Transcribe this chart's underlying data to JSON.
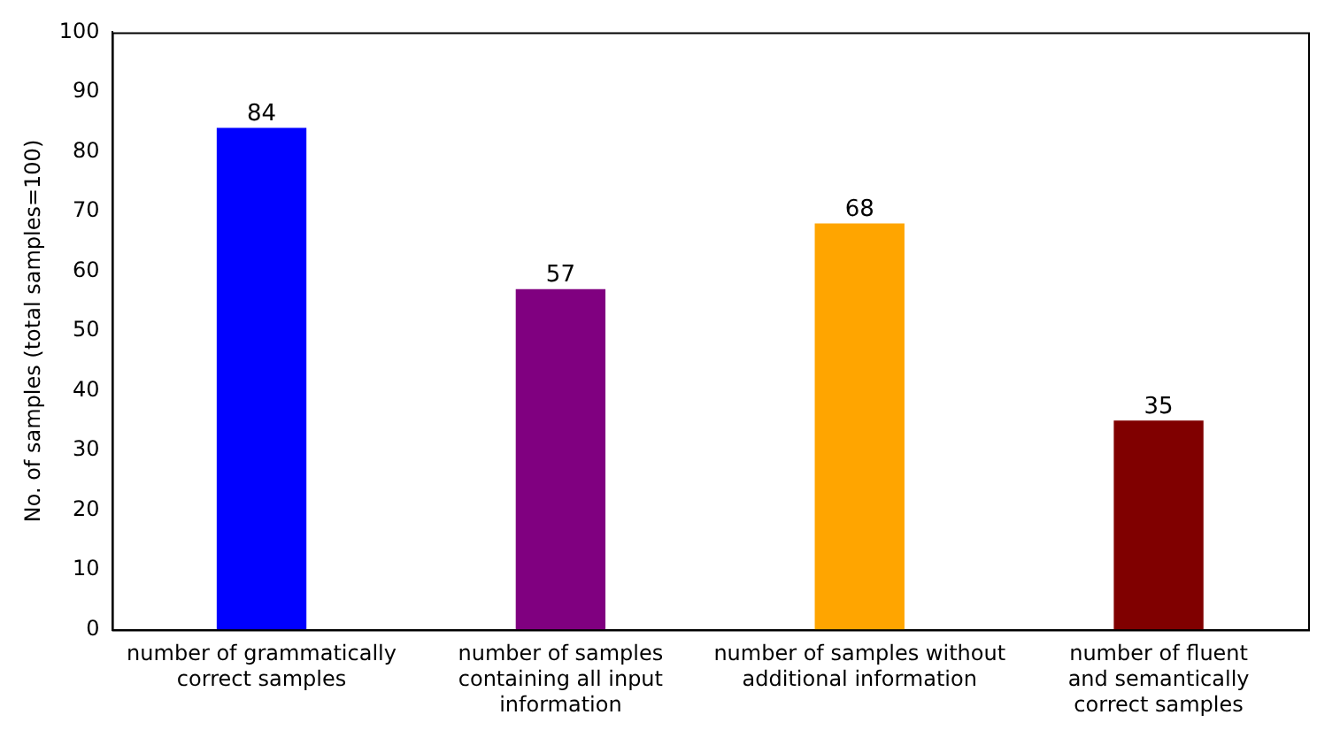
{
  "chart_data": {
    "type": "bar",
    "ylabel": "No. of samples (total samples=100)",
    "categories": [
      "number of grammatically\ncorrect samples",
      "number of samples\ncontaining all input\ninformation",
      "number of samples without\nadditional information",
      "number of fluent\nand semantically\ncorrect samples"
    ],
    "values": [
      84,
      57,
      68,
      35
    ],
    "colors": [
      "#0000ff",
      "#800080",
      "#ffa500",
      "#800000"
    ],
    "ylim": [
      0,
      100
    ],
    "yticks": [
      0,
      10,
      20,
      30,
      40,
      50,
      60,
      70,
      80,
      90,
      100
    ],
    "data_labels": true,
    "grid": false,
    "legend": false
  }
}
